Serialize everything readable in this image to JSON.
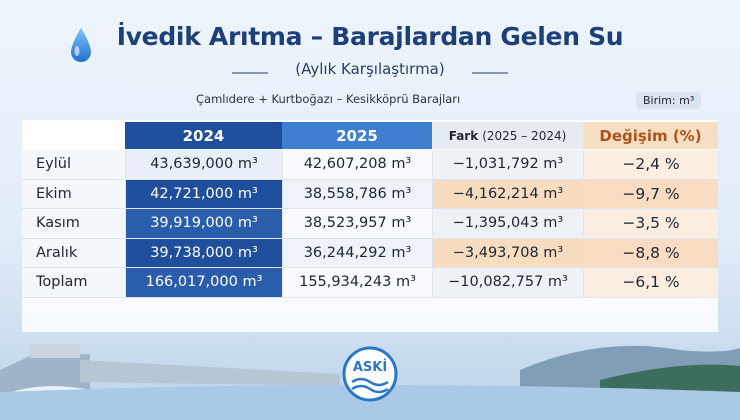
{
  "header": {
    "title": "İvedik Arıtma – Barajlardan Gelen Su",
    "subtitle": "(Aylık Karşılaştırma)",
    "note": "Çamlıdere + Kurtboğazı – Kesikköprü Barajları",
    "unit": "Birim: m³"
  },
  "table": {
    "columns": [
      {
        "main": "2024"
      },
      {
        "main": "2025"
      },
      {
        "main": "Fark",
        "sub": "(2025 – 2024)"
      },
      {
        "main": "Değişim (%)"
      }
    ],
    "rows": [
      [
        "Eylül",
        "43,639,000 m³",
        "42,607,208 m³",
        "−1,031,792 m³",
        "−2,4 %"
      ],
      [
        "Ekim",
        "42,721,000 m³",
        "38,558,786 m³",
        "−4,162,214 m³",
        "−9,7 %"
      ],
      [
        "Kasım",
        "39,919,000 m³",
        "38,523,957 m³",
        "−1,395,043 m³",
        "−3,5 %"
      ],
      [
        "Aralık",
        "39,738,000 m³",
        "36,244,292 m³",
        "−3,493,708 m³",
        "−8,8 %"
      ],
      [
        "Toplam",
        "166,017,000 m³",
        "155,934,243 m³",
        "−10,082,757 m³",
        "−6,1 %"
      ]
    ]
  },
  "logo": "ASKİ"
}
